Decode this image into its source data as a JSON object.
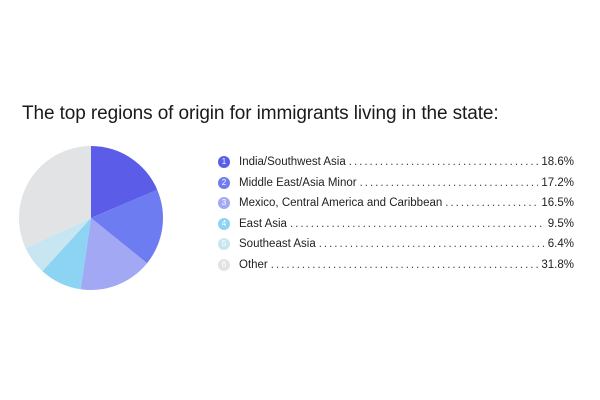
{
  "title": "The top regions of origin for immigrants living in the state:",
  "chart_data": {
    "type": "pie",
    "title": "The top regions of origin for immigrants living in the state:",
    "slices": [
      {
        "index": "1",
        "label": "India/Southwest Asia",
        "value": 18.6,
        "value_label": "18.6%",
        "color": "#5b5ce8"
      },
      {
        "index": "2",
        "label": "Middle East/Asia Minor",
        "value": 17.2,
        "value_label": "17.2%",
        "color": "#6d7cf0"
      },
      {
        "index": "3",
        "label": "Mexico, Central America and Caribbean",
        "value": 16.5,
        "value_label": "16.5%",
        "color": "#a3a8f4"
      },
      {
        "index": "4",
        "label": "East Asia",
        "value": 9.5,
        "value_label": "9.5%",
        "color": "#8dd3f4"
      },
      {
        "index": "5",
        "label": "Southeast Asia",
        "value": 6.4,
        "value_label": "6.4%",
        "color": "#c8e6f2"
      },
      {
        "index": "6",
        "label": "Other",
        "value": 31.8,
        "value_label": "31.8%",
        "color": "#e2e3e5"
      }
    ],
    "legend_position": "right"
  }
}
